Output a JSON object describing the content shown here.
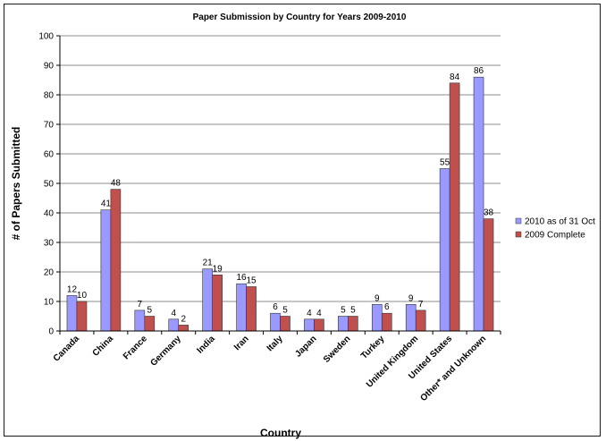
{
  "chart_data": {
    "type": "bar",
    "title": "Paper Submission by Country for Years 2009-2010",
    "xlabel": "Country",
    "ylabel": "# of Papers Submitted",
    "ylim": [
      0,
      100
    ],
    "yticks": [
      0,
      10,
      20,
      30,
      40,
      50,
      60,
      70,
      80,
      90,
      100
    ],
    "grid": true,
    "legend_position": "right",
    "categories": [
      "Canada",
      "China",
      "France",
      "Germany",
      "India",
      "Iran",
      "Italy",
      "Japan",
      "Sweden",
      "Turkey",
      "United Kingdom",
      "United States",
      "Other* and Unknown"
    ],
    "series": [
      {
        "name": "2010 as of 31 Oct",
        "color": "#9999ff",
        "values": [
          12,
          41,
          7,
          4,
          21,
          16,
          6,
          4,
          5,
          9,
          9,
          55,
          86
        ]
      },
      {
        "name": "2009 Complete",
        "color": "#c0504d",
        "values": [
          10,
          48,
          5,
          2,
          19,
          15,
          5,
          4,
          5,
          6,
          7,
          84,
          38
        ]
      }
    ]
  }
}
